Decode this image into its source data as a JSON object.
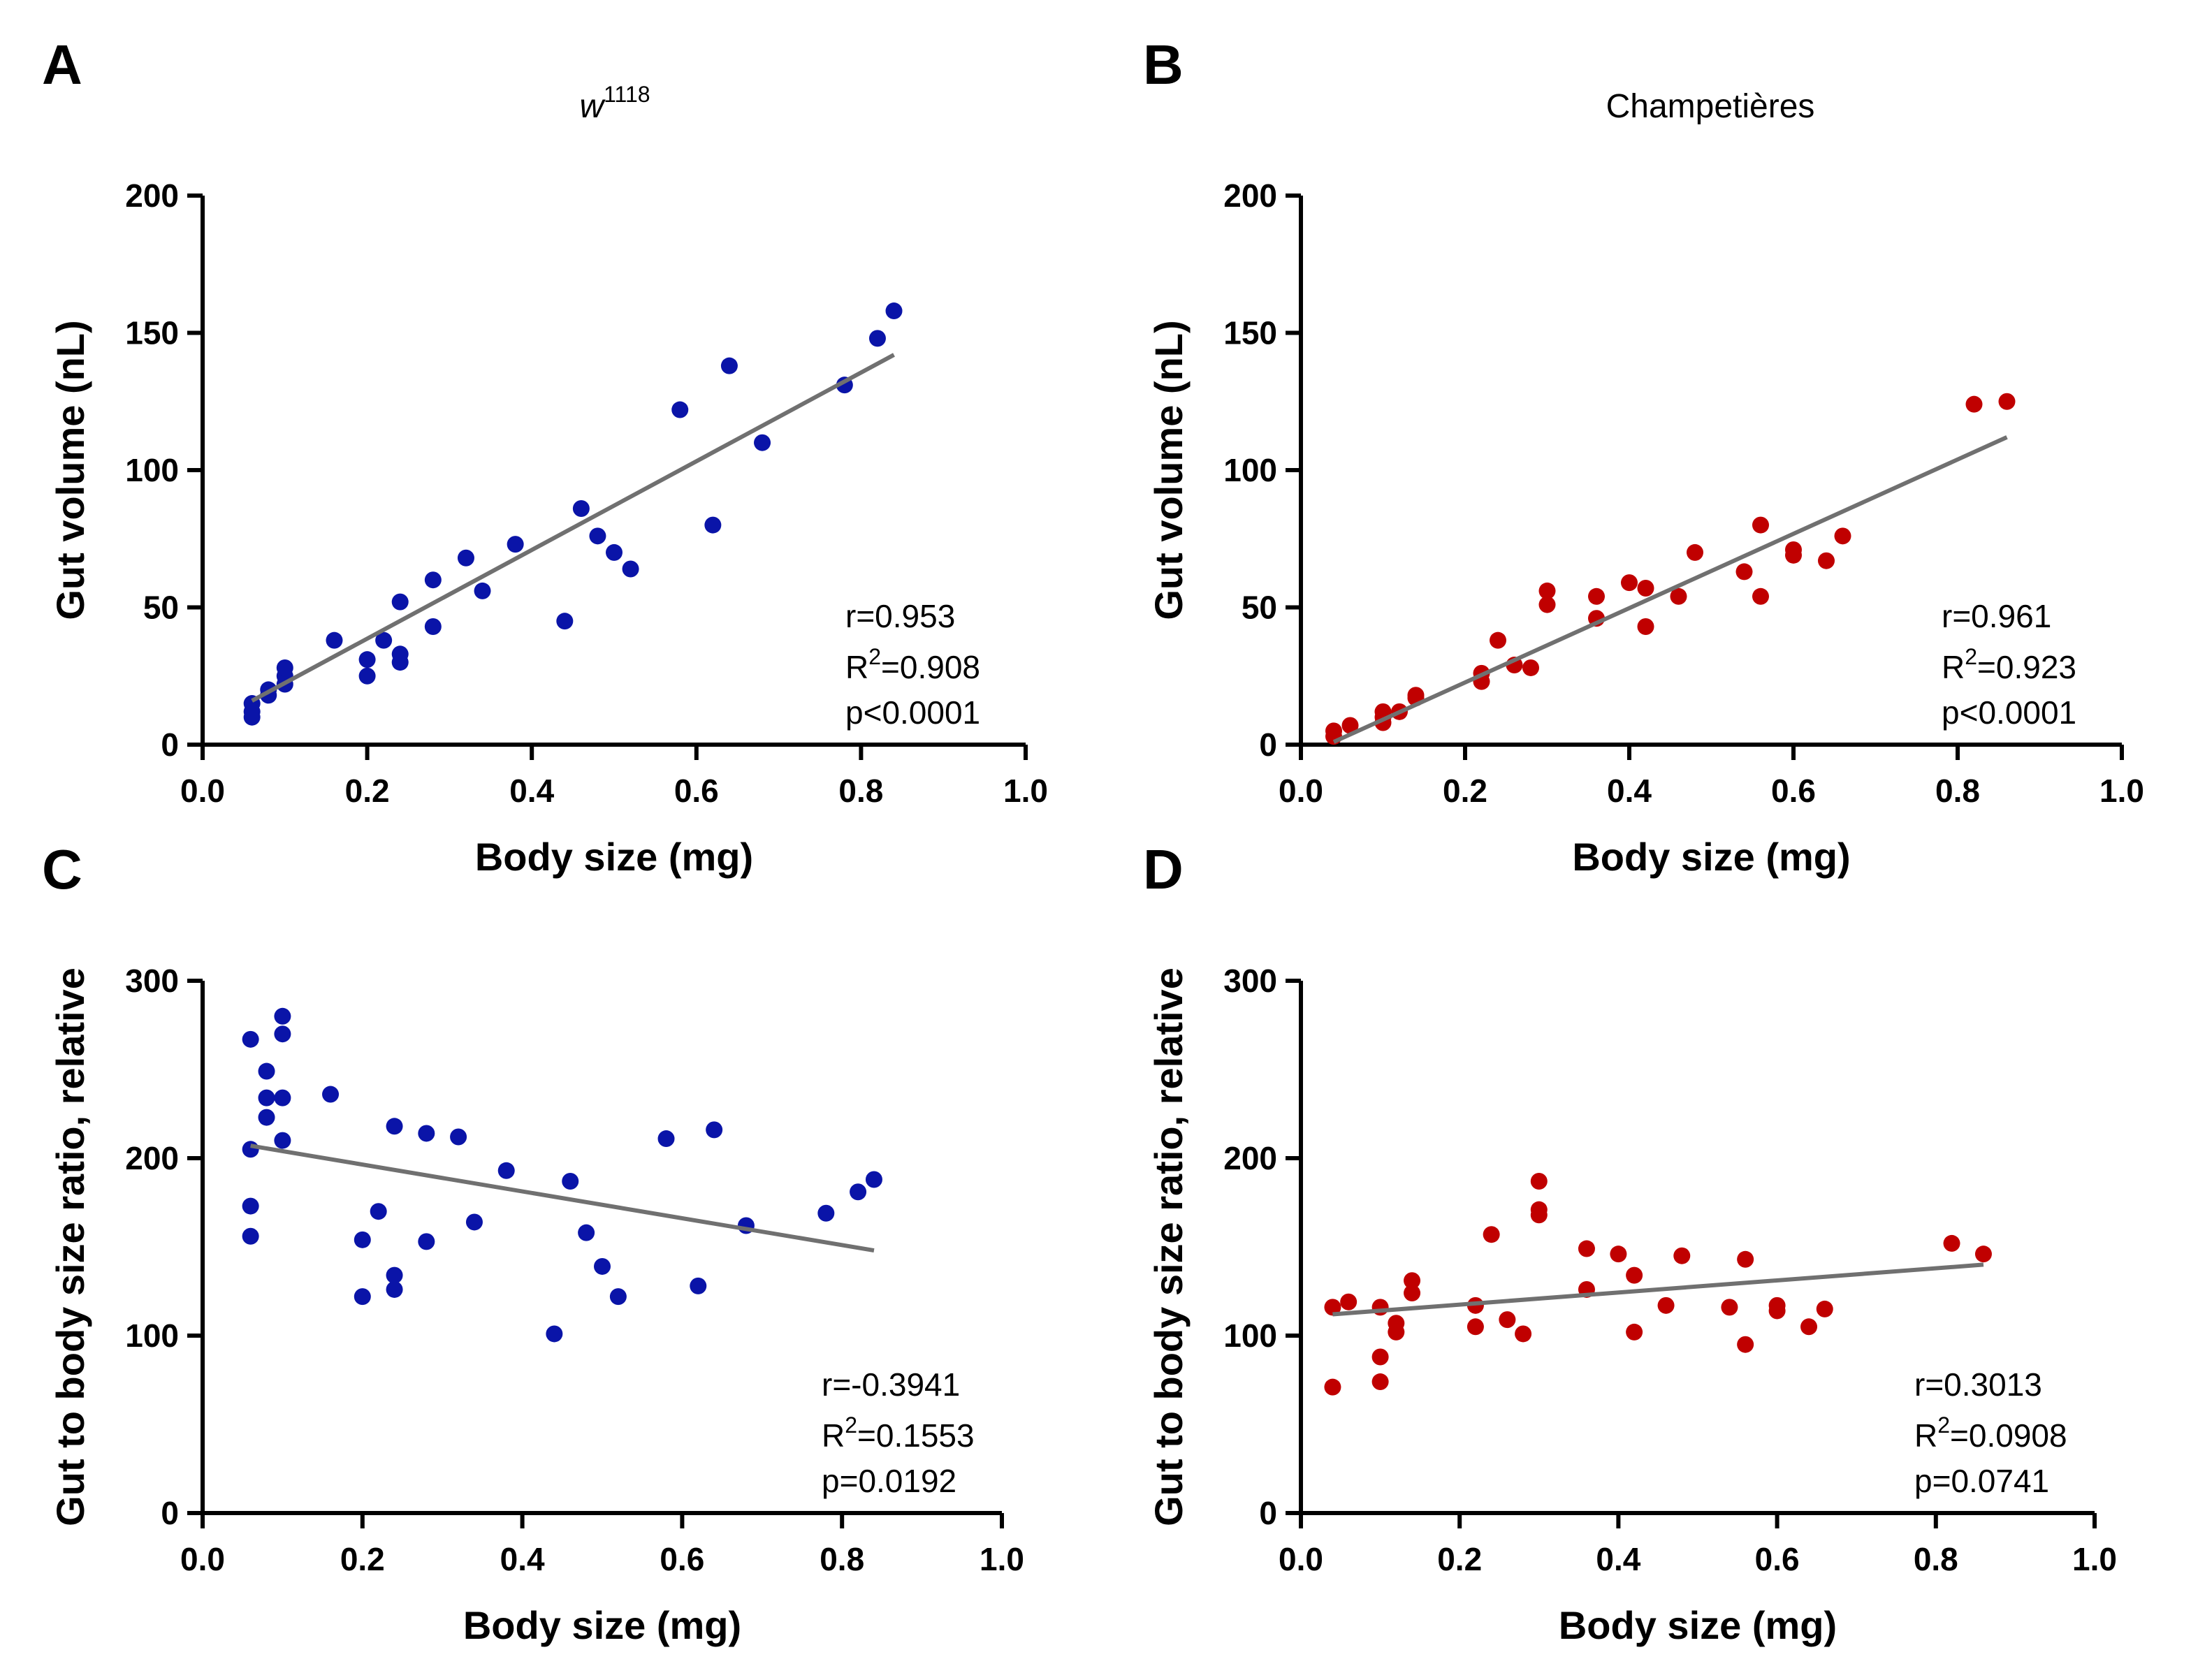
{
  "figure": {
    "panels": [
      {
        "letter": "A",
        "title_base": "w",
        "title_sup": "1118"
      },
      {
        "letter": "B",
        "title_base": "Champetières",
        "title_sup": ""
      },
      {
        "letter": "C",
        "title_base": "",
        "title_sup": ""
      },
      {
        "letter": "D",
        "title_base": "",
        "title_sup": ""
      }
    ]
  },
  "chart_data": [
    {
      "id": "A",
      "type": "scatter",
      "title": "w1118",
      "xlabel": "Body size (mg)",
      "ylabel": "Gut volume (nL)",
      "xlim": [
        0.0,
        1.0
      ],
      "ylim": [
        0,
        200
      ],
      "xticks": [
        "0.0",
        "0.2",
        "0.4",
        "0.6",
        "0.8",
        "1.0"
      ],
      "yticks": [
        "0",
        "50",
        "100",
        "150",
        "200"
      ],
      "color": "#0a14a8",
      "points": [
        [
          0.06,
          10
        ],
        [
          0.06,
          12
        ],
        [
          0.06,
          15
        ],
        [
          0.08,
          18
        ],
        [
          0.08,
          20
        ],
        [
          0.1,
          22
        ],
        [
          0.1,
          25
        ],
        [
          0.1,
          28
        ],
        [
          0.16,
          38
        ],
        [
          0.2,
          25
        ],
        [
          0.2,
          31
        ],
        [
          0.22,
          38
        ],
        [
          0.24,
          30
        ],
        [
          0.24,
          33
        ],
        [
          0.24,
          52
        ],
        [
          0.28,
          43
        ],
        [
          0.28,
          60
        ],
        [
          0.32,
          68
        ],
        [
          0.34,
          56
        ],
        [
          0.38,
          73
        ],
        [
          0.44,
          45
        ],
        [
          0.46,
          86
        ],
        [
          0.48,
          76
        ],
        [
          0.5,
          70
        ],
        [
          0.52,
          64
        ],
        [
          0.58,
          122
        ],
        [
          0.62,
          80
        ],
        [
          0.64,
          138
        ],
        [
          0.68,
          110
        ],
        [
          0.78,
          131
        ],
        [
          0.82,
          148
        ],
        [
          0.84,
          158
        ]
      ],
      "fit": {
        "x": [
          0.06,
          0.84
        ],
        "y": [
          16,
          142
        ]
      },
      "stats": {
        "r": "r=0.953",
        "r2_prefix": "R",
        "r2_sup": "2",
        "r2_value": "=0.908",
        "p": "p<0.0001"
      }
    },
    {
      "id": "B",
      "type": "scatter",
      "title": "Champetières",
      "xlabel": "Body size (mg)",
      "ylabel": "Gut volume (nL)",
      "xlim": [
        0.0,
        1.0
      ],
      "ylim": [
        0,
        200
      ],
      "xticks": [
        "0.0",
        "0.2",
        "0.4",
        "0.6",
        "0.8",
        "1.0"
      ],
      "yticks": [
        "0",
        "50",
        "100",
        "150",
        "200"
      ],
      "color": "#c00000",
      "points": [
        [
          0.04,
          3
        ],
        [
          0.04,
          5
        ],
        [
          0.06,
          7
        ],
        [
          0.1,
          8
        ],
        [
          0.1,
          10
        ],
        [
          0.1,
          12
        ],
        [
          0.12,
          12
        ],
        [
          0.14,
          17
        ],
        [
          0.14,
          18
        ],
        [
          0.22,
          23
        ],
        [
          0.22,
          26
        ],
        [
          0.24,
          38
        ],
        [
          0.26,
          29
        ],
        [
          0.28,
          28
        ],
        [
          0.3,
          51
        ],
        [
          0.3,
          56
        ],
        [
          0.36,
          46
        ],
        [
          0.36,
          54
        ],
        [
          0.4,
          59
        ],
        [
          0.42,
          43
        ],
        [
          0.42,
          57
        ],
        [
          0.46,
          54
        ],
        [
          0.48,
          70
        ],
        [
          0.54,
          63
        ],
        [
          0.56,
          54
        ],
        [
          0.56,
          80
        ],
        [
          0.6,
          69
        ],
        [
          0.6,
          71
        ],
        [
          0.64,
          67
        ],
        [
          0.66,
          76
        ],
        [
          0.82,
          124
        ],
        [
          0.86,
          125
        ]
      ],
      "fit": {
        "x": [
          0.04,
          0.86
        ],
        "y": [
          1,
          112
        ]
      },
      "stats": {
        "r": "r=0.961",
        "r2_prefix": "R",
        "r2_sup": "2",
        "r2_value": "=0.923",
        "p": "p<0.0001"
      }
    },
    {
      "id": "C",
      "type": "scatter",
      "title": "",
      "xlabel": "Body size (mg)",
      "ylabel": "Gut to body size ratio, relative",
      "xlim": [
        0.0,
        1.0
      ],
      "ylim": [
        0,
        300
      ],
      "xticks": [
        "0.0",
        "0.2",
        "0.4",
        "0.6",
        "0.8",
        "1.0"
      ],
      "yticks": [
        "0",
        "100",
        "200",
        "300"
      ],
      "color": "#0a14a8",
      "points": [
        [
          0.06,
          156
        ],
        [
          0.06,
          173
        ],
        [
          0.06,
          205
        ],
        [
          0.06,
          267
        ],
        [
          0.08,
          223
        ],
        [
          0.08,
          234
        ],
        [
          0.08,
          249
        ],
        [
          0.1,
          210
        ],
        [
          0.1,
          234
        ],
        [
          0.1,
          270
        ],
        [
          0.1,
          280
        ],
        [
          0.16,
          236
        ],
        [
          0.2,
          122
        ],
        [
          0.2,
          154
        ],
        [
          0.22,
          170
        ],
        [
          0.24,
          126
        ],
        [
          0.24,
          134
        ],
        [
          0.24,
          218
        ],
        [
          0.28,
          153
        ],
        [
          0.28,
          214
        ],
        [
          0.32,
          212
        ],
        [
          0.34,
          164
        ],
        [
          0.38,
          193
        ],
        [
          0.44,
          101
        ],
        [
          0.46,
          187
        ],
        [
          0.48,
          158
        ],
        [
          0.5,
          139
        ],
        [
          0.52,
          122
        ],
        [
          0.58,
          211
        ],
        [
          0.62,
          128
        ],
        [
          0.64,
          216
        ],
        [
          0.68,
          162
        ],
        [
          0.78,
          169
        ],
        [
          0.82,
          181
        ],
        [
          0.84,
          188
        ]
      ],
      "fit": {
        "x": [
          0.06,
          0.84
        ],
        "y": [
          207,
          148
        ]
      },
      "stats": {
        "r": "r=-0.3941",
        "r2_prefix": "R",
        "r2_sup": "2",
        "r2_value": "=0.1553",
        "p": "p=0.0192"
      }
    },
    {
      "id": "D",
      "type": "scatter",
      "title": "",
      "xlabel": "Body size (mg)",
      "ylabel": "Gut to body size ratio, relative",
      "xlim": [
        0.0,
        1.0
      ],
      "ylim": [
        0,
        300
      ],
      "xticks": [
        "0.0",
        "0.2",
        "0.4",
        "0.6",
        "0.8",
        "1.0"
      ],
      "yticks": [
        "0",
        "100",
        "200",
        "300"
      ],
      "color": "#c00000",
      "points": [
        [
          0.04,
          71
        ],
        [
          0.04,
          116
        ],
        [
          0.06,
          119
        ],
        [
          0.1,
          74
        ],
        [
          0.1,
          88
        ],
        [
          0.1,
          116
        ],
        [
          0.12,
          102
        ],
        [
          0.12,
          107
        ],
        [
          0.14,
          124
        ],
        [
          0.14,
          131
        ],
        [
          0.22,
          105
        ],
        [
          0.22,
          117
        ],
        [
          0.24,
          157
        ],
        [
          0.26,
          109
        ],
        [
          0.28,
          101
        ],
        [
          0.3,
          168
        ],
        [
          0.3,
          171
        ],
        [
          0.3,
          187
        ],
        [
          0.36,
          126
        ],
        [
          0.36,
          149
        ],
        [
          0.4,
          146
        ],
        [
          0.42,
          102
        ],
        [
          0.42,
          134
        ],
        [
          0.46,
          117
        ],
        [
          0.48,
          145
        ],
        [
          0.54,
          116
        ],
        [
          0.56,
          95
        ],
        [
          0.56,
          143
        ],
        [
          0.6,
          114
        ],
        [
          0.6,
          117
        ],
        [
          0.64,
          105
        ],
        [
          0.66,
          115
        ],
        [
          0.82,
          152
        ],
        [
          0.86,
          146
        ]
      ],
      "fit": {
        "x": [
          0.04,
          0.86
        ],
        "y": [
          112,
          140
        ]
      },
      "stats": {
        "r": "r=0.3013",
        "r2_prefix": "R",
        "r2_sup": "2",
        "r2_value": "=0.0908",
        "p": "p=0.0741"
      }
    }
  ]
}
